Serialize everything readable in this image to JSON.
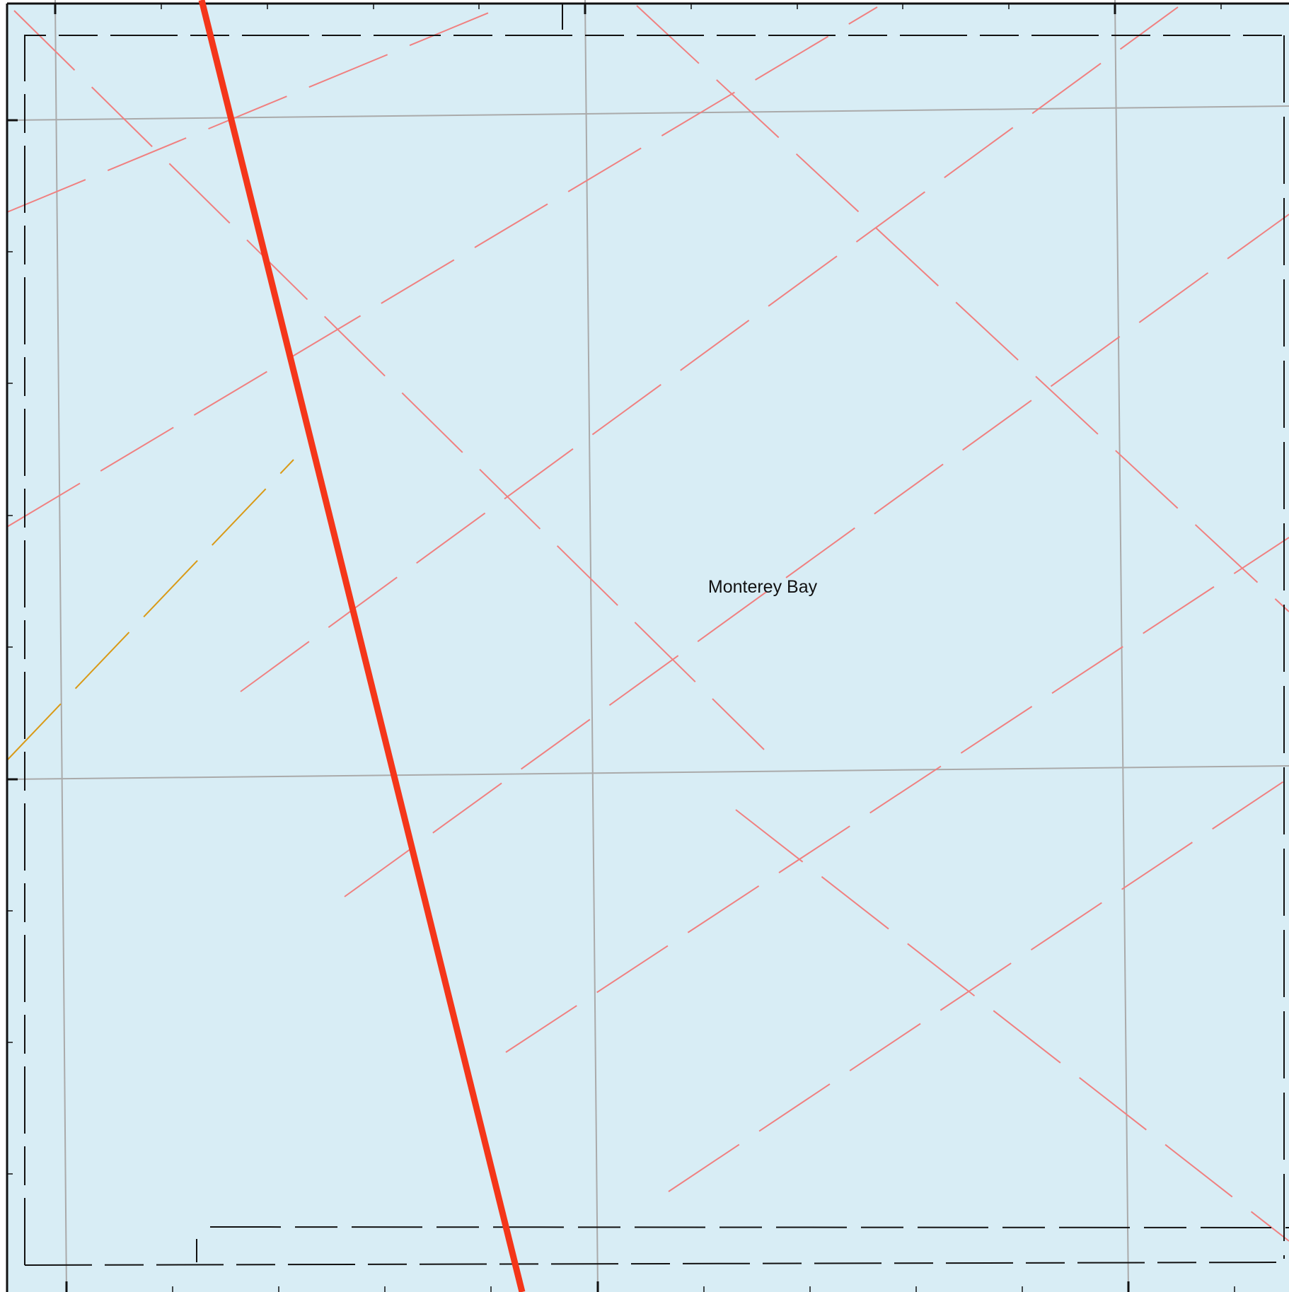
{
  "map": {
    "water_label": "Monterey Bay",
    "colors": {
      "water": "#d8edf5",
      "graticule": "#aaaaaa",
      "boundary": "#111111",
      "route": "#f4361a",
      "route_pink": "#f08080",
      "route_amber": "#d99a16"
    }
  }
}
